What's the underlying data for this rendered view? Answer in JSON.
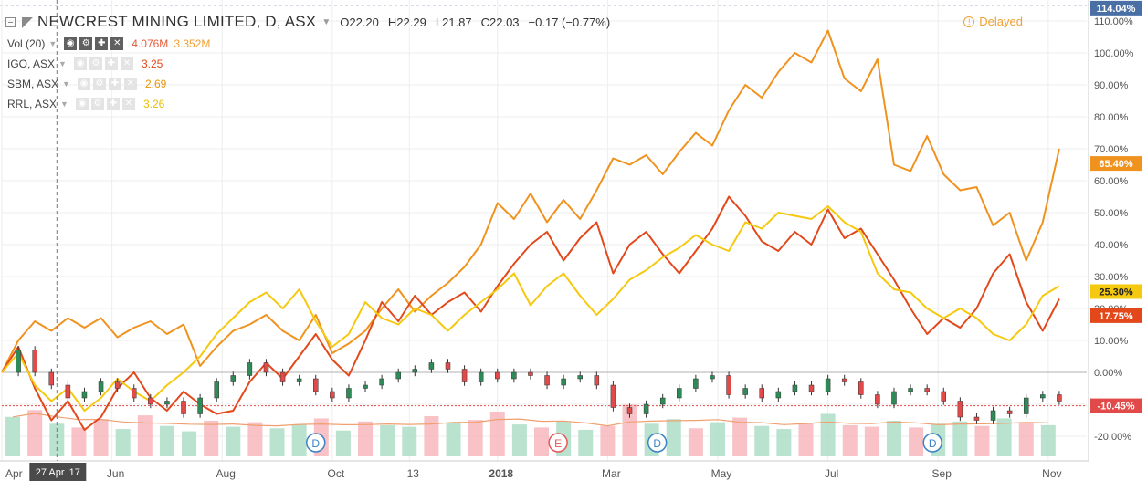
{
  "header": {
    "title": "NEWCREST MINING LIMITED, D, ASX",
    "ohlc": {
      "o": "22.20",
      "h": "22.29",
      "l": "21.87",
      "c": "22.03"
    },
    "change": "−0.17 (−0.77%)",
    "delayed": "Delayed"
  },
  "legend": [
    {
      "label": "Vol (20)",
      "values": [
        "4.076M",
        "3.352M"
      ],
      "value_colors": [
        "#e65a3a",
        "#f0a035"
      ],
      "active": true
    },
    {
      "label": "IGO, ASX",
      "values": [
        "3.25"
      ],
      "value_colors": [
        "#e65a3a"
      ],
      "active": false
    },
    {
      "label": "SBM, ASX",
      "values": [
        "2.69"
      ],
      "value_colors": [
        "#e8960a"
      ],
      "active": false
    },
    {
      "label": "RRL, ASX",
      "values": [
        "3.26"
      ],
      "value_colors": [
        "#e8c000"
      ],
      "active": false
    }
  ],
  "colors": {
    "sbm": "#f0921e",
    "igo": "#e2481a",
    "rrl": "#f5c90f",
    "up": "#2e8b57",
    "down": "#e24a4a",
    "vol_up": "#a9dcc3",
    "vol_down": "#f6b3b8",
    "vol_ma": "#f0a070",
    "grid": "#eeeeee",
    "axis_text": "#555555"
  },
  "chart_data": {
    "type": "line",
    "ylabel": "",
    "xlabel": "",
    "ylim": [
      -25,
      115
    ],
    "y_ticks": [
      "-20.00%",
      "-10.00%",
      "0.00%",
      "10.00%",
      "20.00%",
      "30.00%",
      "40.00%",
      "50.00%",
      "60.00%",
      "70.00%",
      "80.00%",
      "90.00%",
      "100.00%",
      "110.00%"
    ],
    "y_tick_values": [
      -20,
      -10,
      0,
      10,
      20,
      30,
      40,
      50,
      60,
      70,
      80,
      90,
      100,
      110
    ],
    "x_ticks": [
      "Apr",
      "Jun",
      "Aug",
      "Oct",
      "13",
      "2018",
      "Mar",
      "May",
      "Jul",
      "Sep",
      "Nov"
    ],
    "x_tick_months": [
      0,
      2,
      4,
      6,
      7.4,
      9,
      11,
      13,
      15,
      17,
      19
    ],
    "x_range_months": [
      0,
      19.5
    ],
    "crosshair_label": "27 Apr '17",
    "crosshair_month": 1.0,
    "last_labels": [
      {
        "text": "114.04%",
        "value": 114.04,
        "color": "#4a6fa5"
      },
      {
        "text": "65.40%",
        "value": 65.4,
        "color": "#f0921e"
      },
      {
        "text": "25.30%",
        "value": 25.3,
        "color": "#f5c90f"
      },
      {
        "text": "17.75%",
        "value": 17.75,
        "color": "#e2481a"
      },
      {
        "text": "-10.45%",
        "value": -10.45,
        "color": "#e24a4a"
      }
    ],
    "current_level": -10.45,
    "events": [
      {
        "label": "D",
        "month": 5.7
      },
      {
        "label": "E",
        "month": 10.1
      },
      {
        "label": "D",
        "month": 11.9
      },
      {
        "label": "D",
        "month": 16.9
      }
    ],
    "series": [
      {
        "name": "SBM, ASX",
        "color": "#f0921e",
        "x": [
          0,
          0.3,
          0.6,
          0.9,
          1.2,
          1.5,
          1.8,
          2.1,
          2.4,
          2.7,
          3.0,
          3.3,
          3.6,
          3.9,
          4.2,
          4.5,
          4.8,
          5.1,
          5.4,
          5.7,
          6.0,
          6.3,
          6.6,
          6.9,
          7.2,
          7.5,
          7.8,
          8.1,
          8.4,
          8.7,
          9.0,
          9.3,
          9.6,
          9.9,
          10.2,
          10.5,
          10.8,
          11.1,
          11.4,
          11.7,
          12.0,
          12.3,
          12.6,
          12.9,
          13.2,
          13.5,
          13.8,
          14.1,
          14.4,
          14.7,
          15.0,
          15.3,
          15.6,
          15.9,
          16.2,
          16.5,
          16.8,
          17.1,
          17.4,
          17.7,
          18.0,
          18.3,
          18.6,
          18.9,
          19.2
        ],
        "y": [
          0,
          10,
          16,
          13,
          17,
          14,
          17,
          11,
          14,
          16,
          12,
          15,
          2,
          8,
          13,
          15,
          18,
          13,
          10,
          18,
          6,
          9,
          13,
          20,
          26,
          19,
          24,
          28,
          33,
          40,
          53,
          48,
          56,
          47,
          54,
          48,
          57,
          67,
          65,
          68,
          62,
          69,
          75,
          71,
          82,
          90,
          86,
          94,
          100,
          97,
          107,
          92,
          88,
          98,
          65,
          63,
          74,
          62,
          57,
          58,
          46,
          50,
          35,
          47,
          70
        ]
      },
      {
        "name": "IGO, ASX",
        "color": "#e2481a",
        "x": [
          0,
          0.3,
          0.6,
          0.9,
          1.2,
          1.5,
          1.8,
          2.1,
          2.4,
          2.7,
          3.0,
          3.3,
          3.6,
          3.9,
          4.2,
          4.5,
          4.8,
          5.1,
          5.4,
          5.7,
          6.0,
          6.3,
          6.6,
          6.9,
          7.2,
          7.5,
          7.8,
          8.1,
          8.4,
          8.7,
          9.0,
          9.3,
          9.6,
          9.9,
          10.2,
          10.5,
          10.8,
          11.1,
          11.4,
          11.7,
          12.0,
          12.3,
          12.6,
          12.9,
          13.2,
          13.5,
          13.8,
          14.1,
          14.4,
          14.7,
          15.0,
          15.3,
          15.6,
          15.9,
          16.2,
          16.5,
          16.8,
          17.1,
          17.4,
          17.7,
          18.0,
          18.3,
          18.6,
          18.9,
          19.2
        ],
        "y": [
          0,
          8,
          -5,
          -15,
          -9,
          -18,
          -14,
          -5,
          0,
          -8,
          -12,
          -6,
          -10,
          -13,
          -12,
          -3,
          3,
          -2,
          5,
          12,
          4,
          -1,
          10,
          22,
          16,
          24,
          18,
          22,
          25,
          19,
          27,
          34,
          40,
          44,
          35,
          42,
          47,
          31,
          40,
          44,
          37,
          31,
          38,
          45,
          55,
          49,
          41,
          38,
          44,
          40,
          51,
          42,
          45,
          37,
          29,
          20,
          12,
          17,
          14,
          20,
          31,
          37,
          22,
          13,
          23
        ]
      },
      {
        "name": "RRL, ASX",
        "color": "#f5c90f",
        "x": [
          0,
          0.3,
          0.6,
          0.9,
          1.2,
          1.5,
          1.8,
          2.1,
          2.4,
          2.7,
          3.0,
          3.3,
          3.6,
          3.9,
          4.2,
          4.5,
          4.8,
          5.1,
          5.4,
          5.7,
          6.0,
          6.3,
          6.6,
          6.9,
          7.2,
          7.5,
          7.8,
          8.1,
          8.4,
          8.7,
          9.0,
          9.3,
          9.6,
          9.9,
          10.2,
          10.5,
          10.8,
          11.1,
          11.4,
          11.7,
          12.0,
          12.3,
          12.6,
          12.9,
          13.2,
          13.5,
          13.8,
          14.1,
          14.4,
          14.7,
          15.0,
          15.3,
          15.6,
          15.9,
          16.2,
          16.5,
          16.8,
          17.1,
          17.4,
          17.7,
          18.0,
          18.3,
          18.6,
          18.9,
          19.2
        ],
        "y": [
          0,
          6,
          -4,
          -9,
          -5,
          -12,
          -8,
          -2,
          -6,
          -9,
          -4,
          0,
          5,
          12,
          17,
          22,
          25,
          20,
          26,
          16,
          8,
          12,
          22,
          17,
          15,
          20,
          18,
          13,
          18,
          22,
          26,
          31,
          21,
          27,
          31,
          24,
          18,
          23,
          29,
          32,
          36,
          39,
          43,
          40,
          38,
          47,
          45,
          50,
          49,
          48,
          52,
          47,
          44,
          31,
          26,
          25,
          20,
          17,
          20,
          17,
          12,
          10,
          15,
          24,
          27
        ]
      },
      {
        "name": "NEWCREST MINING LIMITED",
        "color": "#2e8b57",
        "x": [
          0,
          0.3,
          0.6,
          0.9,
          1.2,
          1.5,
          1.8,
          2.1,
          2.4,
          2.7,
          3.0,
          3.3,
          3.6,
          3.9,
          4.2,
          4.5,
          4.8,
          5.1,
          5.4,
          5.7,
          6.0,
          6.3,
          6.6,
          6.9,
          7.2,
          7.5,
          7.8,
          8.1,
          8.4,
          8.7,
          9.0,
          9.3,
          9.6,
          9.9,
          10.2,
          10.5,
          10.8,
          11.1,
          11.4,
          11.7,
          12.0,
          12.3,
          12.6,
          12.9,
          13.2,
          13.5,
          13.8,
          14.1,
          14.4,
          14.7,
          15.0,
          15.3,
          15.6,
          15.9,
          16.2,
          16.5,
          16.8,
          17.1,
          17.4,
          17.7,
          18.0,
          18.3,
          18.6,
          18.9,
          19.2
        ],
        "y": [
          0,
          7,
          0,
          -4,
          -8,
          -6,
          -3,
          -5,
          -8,
          -10,
          -9,
          -13,
          -8,
          -3,
          -1,
          3,
          0,
          -3,
          -2,
          -6,
          -8,
          -5,
          -4,
          -2,
          0,
          1,
          3,
          1,
          -3,
          0,
          -2,
          0,
          -1,
          -4,
          -2,
          -1,
          -4,
          -11,
          -13,
          -10,
          -8,
          -5,
          -2,
          -1,
          -7,
          -5,
          -8,
          -6,
          -4,
          -6,
          -2,
          -3,
          -7,
          -10,
          -6,
          -5,
          -6,
          -9,
          -14,
          -15,
          -12,
          -13,
          -8,
          -7,
          -9
        ]
      }
    ],
    "volume": {
      "x": [
        0.2,
        0.6,
        1.0,
        1.4,
        1.8,
        2.2,
        2.6,
        3.0,
        3.4,
        3.8,
        4.2,
        4.6,
        5.0,
        5.4,
        5.8,
        6.2,
        6.6,
        7.0,
        7.4,
        7.8,
        8.2,
        8.6,
        9.0,
        9.4,
        9.8,
        10.2,
        10.6,
        11.0,
        11.4,
        11.8,
        12.2,
        12.6,
        13.0,
        13.4,
        13.8,
        14.2,
        14.6,
        15.0,
        15.4,
        15.8,
        16.2,
        16.6,
        17.0,
        17.4,
        17.8,
        18.2,
        18.6,
        19.0
      ],
      "values": [
        5.2,
        6.1,
        4.3,
        3.8,
        4.9,
        3.6,
        5.4,
        4.0,
        3.3,
        4.7,
        3.9,
        4.5,
        3.7,
        4.2,
        5.0,
        3.4,
        4.6,
        4.1,
        3.9,
        5.3,
        4.4,
        4.8,
        5.9,
        4.2,
        3.8,
        4.6,
        3.5,
        4.0,
        6.8,
        4.3,
        4.9,
        3.7,
        4.5,
        5.1,
        4.0,
        3.6,
        4.4,
        5.6,
        4.1,
        3.9,
        4.7,
        3.8,
        4.3,
        4.6,
        4.0,
        5.0,
        4.4,
        4.1
      ],
      "up": [
        true,
        false,
        true,
        false,
        false,
        true,
        false,
        true,
        true,
        false,
        true,
        false,
        true,
        true,
        false,
        true,
        false,
        true,
        true,
        false,
        true,
        false,
        false,
        true,
        false,
        true,
        true,
        false,
        false,
        true,
        true,
        false,
        true,
        false,
        true,
        true,
        false,
        true,
        false,
        false,
        true,
        false,
        true,
        true,
        false,
        true,
        false,
        true
      ],
      "ma_label": "Vol (20)"
    }
  }
}
